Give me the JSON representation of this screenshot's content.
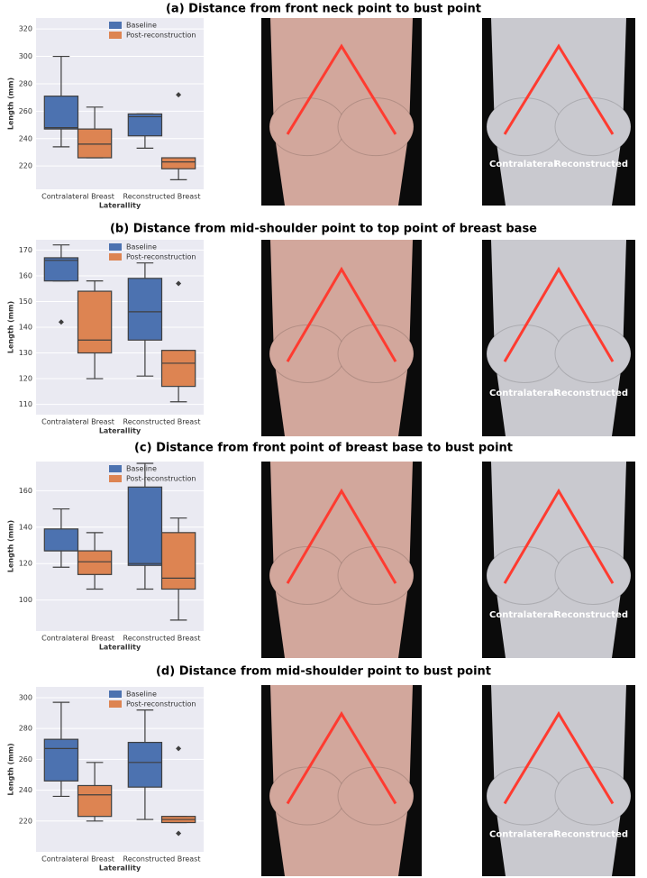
{
  "chart_data": [
    {
      "type": "box",
      "title": "(a) Distance from front neck point to bust point",
      "ylabel": "Length (mm)",
      "xlabel": "Laterallity",
      "categories": [
        "Contralateral Breast",
        "Reconstructed Breast"
      ],
      "series": [
        {
          "name": "Baseline",
          "color": "#4c72b0",
          "stats": [
            {
              "low": 234,
              "q1": 247,
              "median": 248,
              "q3": 271,
              "high": 300,
              "outliers": []
            },
            {
              "low": 233,
              "q1": 242,
              "median": 256,
              "q3": 258,
              "high": 258,
              "outliers": []
            }
          ]
        },
        {
          "name": "Post-reconstruction",
          "color": "#dd8452",
          "stats": [
            {
              "low": 226,
              "q1": 226,
              "median": 236,
              "q3": 247,
              "high": 263,
              "outliers": []
            },
            {
              "low": 210,
              "q1": 218,
              "median": 223,
              "q3": 226,
              "high": 226,
              "outliers": [
                272
              ]
            }
          ]
        }
      ],
      "ylim": [
        203,
        328
      ],
      "yticks": [
        220,
        240,
        260,
        280,
        300,
        320
      ],
      "grid": true,
      "legend": "upper right"
    },
    {
      "type": "box",
      "title": "(b) Distance from mid-shoulder point to top point of breast base",
      "ylabel": "Length (mm)",
      "xlabel": "Laterallity",
      "categories": [
        "Contralateral Breast",
        "Reconstructed Breast"
      ],
      "series": [
        {
          "name": "Baseline",
          "color": "#4c72b0",
          "stats": [
            {
              "low": 158,
              "q1": 158,
              "median": 166,
              "q3": 167,
              "high": 172,
              "outliers": [
                142
              ]
            },
            {
              "low": 121,
              "q1": 135,
              "median": 146,
              "q3": 159,
              "high": 165,
              "outliers": []
            }
          ]
        },
        {
          "name": "Post-reconstruction",
          "color": "#dd8452",
          "stats": [
            {
              "low": 120,
              "q1": 130,
              "median": 135,
              "q3": 154,
              "high": 158,
              "outliers": []
            },
            {
              "low": 111,
              "q1": 117,
              "median": 126,
              "q3": 131,
              "high": 131,
              "outliers": [
                157
              ]
            }
          ]
        }
      ],
      "ylim": [
        106,
        174
      ],
      "yticks": [
        110,
        120,
        130,
        140,
        150,
        160,
        170
      ],
      "grid": true,
      "legend": "upper right"
    },
    {
      "type": "box",
      "title": "(c) Distance from front point of breast base to bust point",
      "ylabel": "Length (mm)",
      "xlabel": "Laterallity",
      "categories": [
        "Contralateral Breast",
        "Reconstructed Breast"
      ],
      "series": [
        {
          "name": "Baseline",
          "color": "#4c72b0",
          "stats": [
            {
              "low": 118,
              "q1": 127,
              "median": 127,
              "q3": 139,
              "high": 150,
              "outliers": []
            },
            {
              "low": 106,
              "q1": 119,
              "median": 120,
              "q3": 162,
              "high": 175,
              "outliers": []
            }
          ]
        },
        {
          "name": "Post-reconstruction",
          "color": "#dd8452",
          "stats": [
            {
              "low": 106,
              "q1": 114,
              "median": 121,
              "q3": 127,
              "high": 137,
              "outliers": []
            },
            {
              "low": 89,
              "q1": 106,
              "median": 112,
              "q3": 137,
              "high": 145,
              "outliers": []
            }
          ]
        }
      ],
      "ylim": [
        83,
        176
      ],
      "yticks": [
        100,
        120,
        140,
        160
      ],
      "grid": true,
      "legend": "upper right"
    },
    {
      "type": "box",
      "title": "(d)  Distance from mid-shoulder point to bust point",
      "ylabel": "Length (mm)",
      "xlabel": "Laterallity",
      "categories": [
        "Contralateral Breast",
        "Reconstructed Breast"
      ],
      "series": [
        {
          "name": "Baseline",
          "color": "#4c72b0",
          "stats": [
            {
              "low": 236,
              "q1": 246,
              "median": 267,
              "q3": 273,
              "high": 297,
              "outliers": []
            },
            {
              "low": 221,
              "q1": 242,
              "median": 258,
              "q3": 271,
              "high": 292,
              "outliers": []
            }
          ]
        },
        {
          "name": "Post-reconstruction",
          "color": "#dd8452",
          "stats": [
            {
              "low": 220,
              "q1": 223,
              "median": 237,
              "q3": 243,
              "high": 258,
              "outliers": []
            },
            {
              "low": 219,
              "q1": 219,
              "median": 221,
              "q3": 223,
              "high": 223,
              "outliers": [
                267,
                212
              ]
            }
          ]
        }
      ],
      "ylim": [
        200,
        307
      ],
      "yticks": [
        220,
        240,
        260,
        280,
        300
      ],
      "grid": true,
      "legend": "upper right"
    }
  ],
  "photo_labels": {
    "left": "Contralateral",
    "right": "Reconstructed"
  }
}
